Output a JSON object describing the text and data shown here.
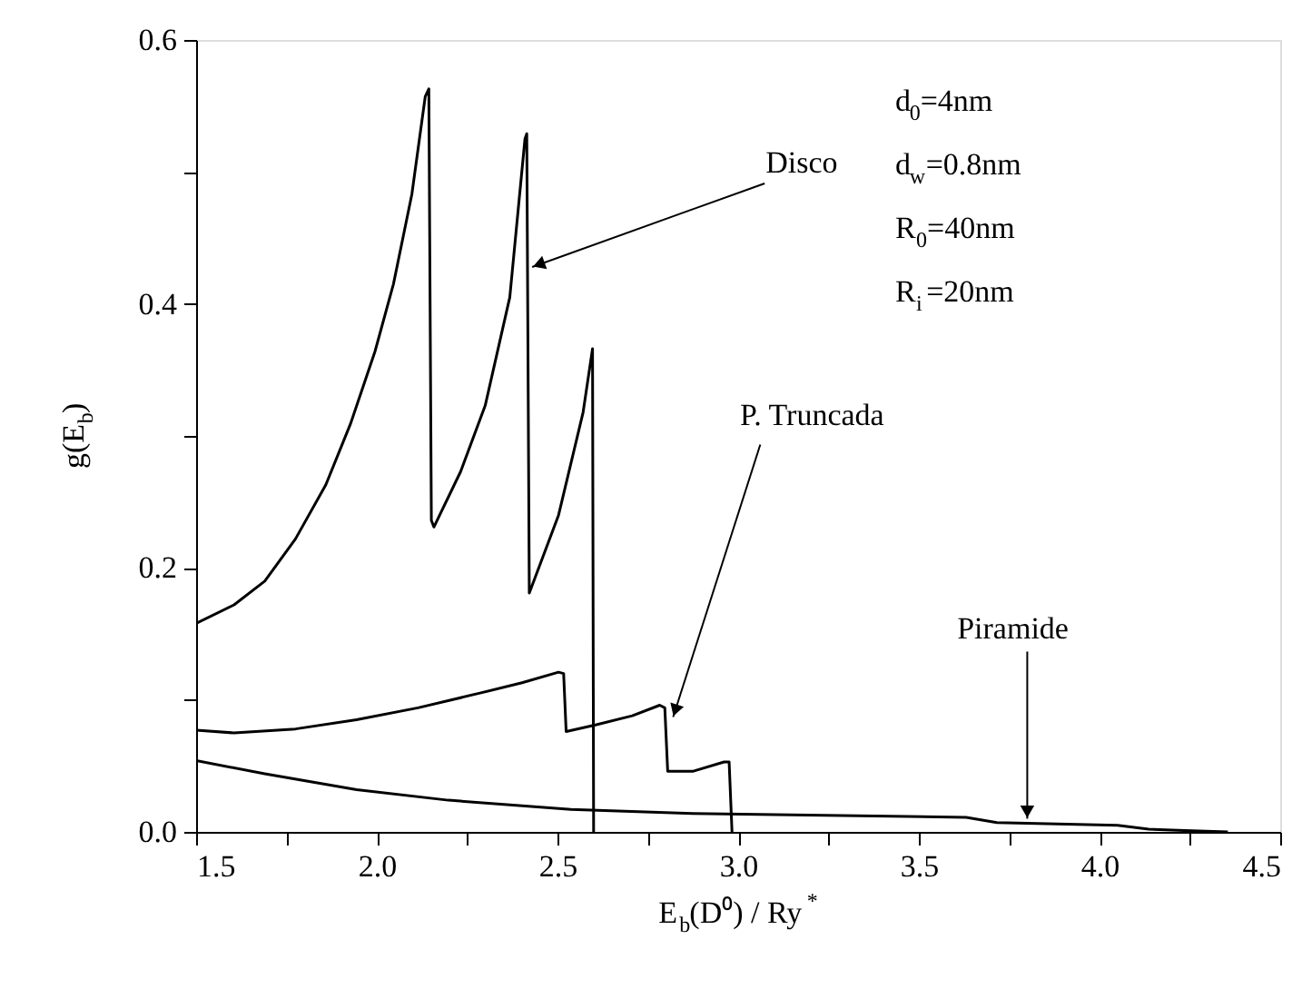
{
  "chart_data": {
    "type": "line",
    "xlabel": "E$_{b}$(D⁰) / Ry$^{*}$",
    "ylabel": "g(E$_{b}$)",
    "xlim": [
      1.5,
      4.5
    ],
    "ylim": [
      0,
      0.6
    ],
    "xticks": [
      1.5,
      {
        "value": 1.75,
        "label": null
      },
      {
        "value": 2,
        "label": "2.0"
      },
      {
        "value": 2.25,
        "label": null
      },
      2.5,
      {
        "value": 2.75,
        "label": null
      },
      {
        "value": 3,
        "label": "3.0"
      },
      {
        "value": 3.25,
        "label": null
      },
      3.5,
      {
        "value": 3.75,
        "label": null
      },
      {
        "value": 4,
        "label": "4.0"
      },
      {
        "value": 4.25,
        "label": null
      },
      4.5
    ],
    "yticks": [
      {
        "value": 0,
        "label": "0.0"
      },
      {
        "value": 0.1,
        "label": null
      },
      0.2,
      {
        "value": 0.3,
        "label": null
      },
      0.4,
      {
        "value": 0.5,
        "label": null
      },
      0.6
    ],
    "grid": false,
    "legend": false,
    "marker": "none",
    "line_style": "solid",
    "series": [
      {
        "color": "#000000",
        "x": [
          1.5,
          1.605,
          1.69,
          1.775,
          1.859,
          1.927,
          1.995,
          2.046,
          2.097,
          2.134,
          2.144,
          2.151,
          2.158,
          2.232,
          2.3,
          2.368,
          2.41,
          2.415,
          2.422,
          2.503,
          2.571,
          2.597,
          2.6
        ],
        "values": [
          0.158,
          0.172,
          0.19,
          0.222,
          0.263,
          0.309,
          0.364,
          0.415,
          0.483,
          0.557,
          0.563,
          0.236,
          0.231,
          0.273,
          0.323,
          0.405,
          0.525,
          0.529,
          0.181,
          0.24,
          0.318,
          0.366,
          0.0
        ]
      },
      {
        "color": "#000000",
        "x": [
          1.5,
          1.605,
          1.775,
          1.944,
          2.114,
          2.283,
          2.402,
          2.503,
          2.517,
          2.524,
          2.605,
          2.707,
          2.783,
          2.797,
          2.805,
          2.876,
          2.961,
          2.975,
          2.983
        ],
        "values": [
          0.077,
          0.075,
          0.078,
          0.085,
          0.094,
          0.105,
          0.113,
          0.121,
          0.12,
          0.076,
          0.081,
          0.088,
          0.096,
          0.094,
          0.046,
          0.046,
          0.053,
          0.053,
          0.0
        ]
      },
      {
        "color": "#000000",
        "x": [
          1.5,
          1.69,
          1.944,
          2.198,
          2.537,
          2.874,
          3.631,
          3.716,
          4.05,
          4.136,
          4.237,
          4.355
        ],
        "values": [
          0.054,
          0.044,
          0.032,
          0.024,
          0.017,
          0.014,
          0.011,
          0.007,
          0.005,
          0.002,
          0.001,
          0.0
        ]
      }
    ],
    "annotations": [
      {
        "text": "Disco",
        "x": 2.43,
        "y": 0.428
      },
      {
        "text": "P. Truncada",
        "x": 2.82,
        "y": 0.087
      },
      {
        "text": "Piramide",
        "x": 3.8,
        "y": 0.01
      },
      "d$_{0}$=4nm",
      "d$_{w}$=0.8nm",
      "R$_{0}$=40nm",
      "R$_{i}$=20nm"
    ]
  }
}
